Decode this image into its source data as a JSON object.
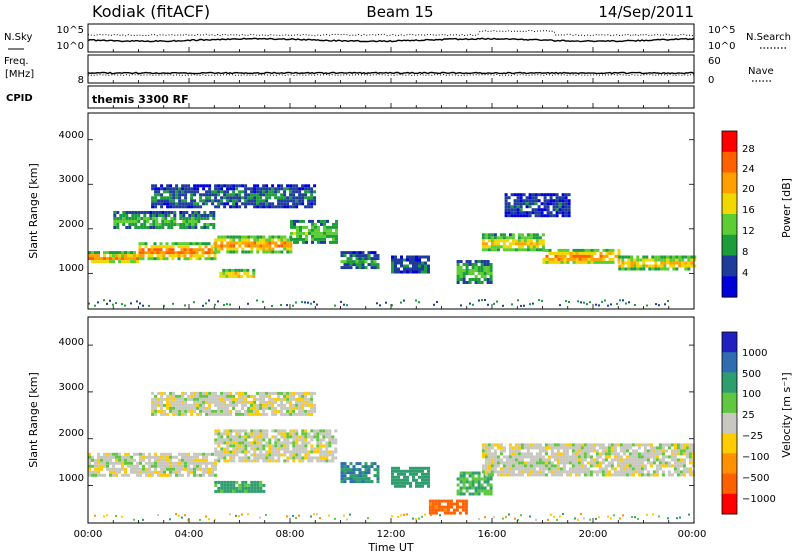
{
  "header": {
    "station": "Kodiak (fitACF)",
    "beam": "Beam 15",
    "date": "14/Sep/2011"
  },
  "top_strip": {
    "left_label": "N.Sky",
    "right_label": "N.Search",
    "left_tick_top": "10^5",
    "left_tick_bottom": "10^0",
    "right_tick_top": "10^5",
    "right_tick_bottom": "10^0"
  },
  "freq_strip": {
    "left_label_line1": "Freq.",
    "left_label_line2": "[MHz]",
    "right_label": "Nave",
    "left_tick": "8",
    "right_tick_top": "60",
    "right_tick_bottom": "0"
  },
  "cpid_strip": {
    "label": "CPID",
    "value": "themis 3300 RF"
  },
  "xaxis": {
    "label": "Time UT",
    "ticks": [
      "00:00",
      "04:00",
      "08:00",
      "12:00",
      "16:00",
      "20:00",
      "00:00"
    ]
  },
  "power_panel": {
    "ylabel": "Slant Range [km]",
    "yticks": [
      "4000",
      "3000",
      "2000",
      "1000"
    ],
    "colorbar_label": "Power [dB]",
    "colorbar_ticks": [
      "28",
      "24",
      "20",
      "16",
      "12",
      "8",
      "4"
    ],
    "colors": [
      "#0000d8",
      "#1e3c9c",
      "#1d9c3c",
      "#5ccd33",
      "#f0d800",
      "#ffa000",
      "#ff6000",
      "#ff0000"
    ]
  },
  "velocity_panel": {
    "ylabel": "Slant Range [km]",
    "yticks": [
      "4000",
      "3000",
      "2000",
      "1000"
    ],
    "colorbar_label": "Velocity [m s⁻¹]",
    "colorbar_ticks": [
      "1000",
      "500",
      "100",
      "25",
      "−25",
      "−100",
      "−500",
      "−1000"
    ],
    "colors": [
      "#2020c0",
      "#2e6eb0",
      "#2e9e6e",
      "#60c840",
      "#c8c8c0",
      "#ffcc00",
      "#ff9000",
      "#ff6000",
      "#ff0000"
    ]
  },
  "chart_data": [
    {
      "type": "heatmap",
      "title": "Power [dB]",
      "xlabel": "Time UT",
      "ylabel": "Slant Range [km]",
      "xlim": [
        0,
        24
      ],
      "ylim": [
        200,
        4600
      ],
      "colorbar_range": [
        0,
        32
      ],
      "bands": [
        {
          "t0": 0.0,
          "t1": 2.0,
          "r0": 1250,
          "r1": 1500,
          "value": 22
        },
        {
          "t0": 2.0,
          "t1": 5.0,
          "r0": 1350,
          "r1": 1700,
          "value": 24
        },
        {
          "t0": 5.0,
          "t1": 8.0,
          "r0": 1500,
          "r1": 1850,
          "value": 22
        },
        {
          "t0": 8.0,
          "t1": 9.8,
          "r0": 1700,
          "r1": 2200,
          "value": 14
        },
        {
          "t0": 1.0,
          "t1": 5.0,
          "r0": 2000,
          "r1": 2400,
          "value": 12
        },
        {
          "t0": 2.5,
          "t1": 9.0,
          "r0": 2500,
          "r1": 3000,
          "value": 8
        },
        {
          "t0": 5.2,
          "t1": 6.6,
          "r0": 900,
          "r1": 1100,
          "value": 20
        },
        {
          "t0": 10.0,
          "t1": 11.5,
          "r0": 1100,
          "r1": 1500,
          "value": 10
        },
        {
          "t0": 12.0,
          "t1": 13.5,
          "r0": 1000,
          "r1": 1400,
          "value": 8
        },
        {
          "t0": 14.6,
          "t1": 16.0,
          "r0": 800,
          "r1": 1300,
          "value": 12
        },
        {
          "t0": 15.6,
          "t1": 18.0,
          "r0": 1500,
          "r1": 1900,
          "value": 18
        },
        {
          "t0": 18.0,
          "t1": 21.0,
          "r0": 1250,
          "r1": 1550,
          "value": 24
        },
        {
          "t0": 21.0,
          "t1": 24.0,
          "r0": 1100,
          "r1": 1400,
          "value": 20
        },
        {
          "t0": 16.5,
          "t1": 19.0,
          "r0": 2300,
          "r1": 2800,
          "value": 6
        }
      ]
    },
    {
      "type": "heatmap",
      "title": "Velocity [m s⁻¹]",
      "xlabel": "Time UT",
      "ylabel": "Slant Range [km]",
      "xlim": [
        0,
        24
      ],
      "ylim": [
        200,
        4600
      ],
      "colorbar_range": [
        -1000,
        1000
      ],
      "bands": [
        {
          "t0": 0.0,
          "t1": 5.0,
          "r0": 1250,
          "r1": 1700,
          "value": 0
        },
        {
          "t0": 5.0,
          "t1": 9.8,
          "r0": 1500,
          "r1": 2200,
          "value": 0
        },
        {
          "t0": 2.5,
          "t1": 9.0,
          "r0": 2500,
          "r1": 3000,
          "value": 0
        },
        {
          "t0": 5.0,
          "t1": 7.0,
          "r0": 850,
          "r1": 1100,
          "value": 80
        },
        {
          "t0": 10.0,
          "t1": 11.5,
          "r0": 1100,
          "r1": 1500,
          "value": 300
        },
        {
          "t0": 12.0,
          "t1": 13.5,
          "r0": 1000,
          "r1": 1400,
          "value": 200
        },
        {
          "t0": 14.6,
          "t1": 16.0,
          "r0": 800,
          "r1": 1300,
          "value": 60
        },
        {
          "t0": 13.5,
          "t1": 15.0,
          "r0": 400,
          "r1": 700,
          "value": -500
        },
        {
          "t0": 15.6,
          "t1": 24.0,
          "r0": 1200,
          "r1": 1900,
          "value": 0
        }
      ]
    }
  ]
}
